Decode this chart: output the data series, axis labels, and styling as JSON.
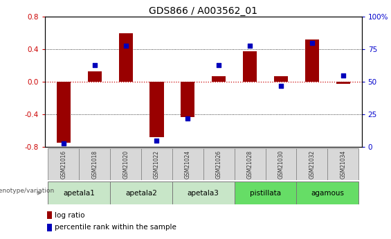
{
  "title": "GDS866 / A003562_01",
  "samples": [
    "GSM21016",
    "GSM21018",
    "GSM21020",
    "GSM21022",
    "GSM21024",
    "GSM21026",
    "GSM21028",
    "GSM21030",
    "GSM21032",
    "GSM21034"
  ],
  "log_ratio": [
    -0.75,
    0.13,
    0.6,
    -0.68,
    -0.43,
    0.07,
    0.38,
    0.07,
    0.52,
    -0.02
  ],
  "percentile_rank": [
    3,
    63,
    78,
    5,
    22,
    63,
    78,
    47,
    80,
    55
  ],
  "group_spans": [
    {
      "label": "apetala1",
      "start": 0,
      "end": 1,
      "color": "#c8e6c8"
    },
    {
      "label": "apetala2",
      "start": 2,
      "end": 3,
      "color": "#c8e6c8"
    },
    {
      "label": "apetala3",
      "start": 4,
      "end": 5,
      "color": "#c8e6c8"
    },
    {
      "label": "pistillata",
      "start": 6,
      "end": 7,
      "color": "#66dd66"
    },
    {
      "label": "agamous",
      "start": 8,
      "end": 9,
      "color": "#66dd66"
    }
  ],
  "ylim_left": [
    -0.8,
    0.8
  ],
  "ylim_right": [
    0,
    100
  ],
  "yticks_left": [
    -0.8,
    -0.4,
    0.0,
    0.4,
    0.8
  ],
  "yticks_right": [
    0,
    25,
    50,
    75,
    100
  ],
  "ytick_labels_right": [
    "0",
    "25",
    "50",
    "75",
    "100%"
  ],
  "bar_color": "#990000",
  "dot_color": "#0000bb",
  "zero_line_color": "#cc0000",
  "title_fontsize": 10,
  "legend_label_log": "log ratio",
  "legend_label_pct": "percentile rank within the sample",
  "genotype_label": "genotype/variation",
  "bar_width": 0.45,
  "dot_size": 16
}
